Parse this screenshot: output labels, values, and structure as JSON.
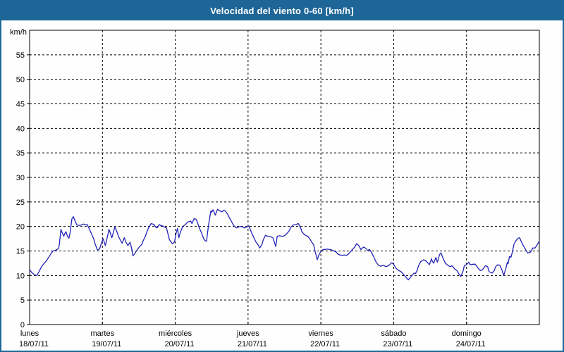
{
  "window": {
    "title": "Velocidad del viento 0-60 [km/h]"
  },
  "colors": {
    "titlebar_bg": "#1f6698",
    "titlebar_text": "#ffffff",
    "frame_border": "#1f6698",
    "plot_bg": "#fdfefd",
    "grid_color": "#000000",
    "line_color": "#2323b8"
  },
  "chart_data": {
    "type": "line",
    "title": "Velocidad del viento 0-60 [km/h]",
    "ylabel": "km/h",
    "xlabel": "",
    "ylim": [
      0,
      60
    ],
    "ytick_step": 5,
    "grid": "dashed",
    "legend": "none",
    "x_unit": "days",
    "x_labels": [
      {
        "day": "lunes",
        "date": "18/07/11"
      },
      {
        "day": "martes",
        "date": "19/07/11"
      },
      {
        "day": "miércoles",
        "date": "20/07/11"
      },
      {
        "day": "jueves",
        "date": "21/07/11"
      },
      {
        "day": "viernes",
        "date": "22/07/11"
      },
      {
        "day": "sábado",
        "date": "23/07/11"
      },
      {
        "day": "domingo",
        "date": "24/07/11"
      }
    ],
    "series": [
      {
        "name": "Velocidad del viento (km/h)",
        "color": "#2323b8",
        "points": [
          [
            0,
            11.2
          ],
          [
            0.03,
            10.6
          ],
          [
            0.07,
            10.1
          ],
          [
            0.1,
            10
          ],
          [
            0.13,
            10.8
          ],
          [
            0.16,
            11.7
          ],
          [
            0.19,
            12.3
          ],
          [
            0.23,
            13
          ],
          [
            0.27,
            13.9
          ],
          [
            0.3,
            14.6
          ],
          [
            0.32,
            15
          ],
          [
            0.35,
            15.1
          ],
          [
            0.38,
            15.3
          ],
          [
            0.4,
            15.6
          ],
          [
            0.41,
            16.5
          ],
          [
            0.43,
            19.4
          ],
          [
            0.45,
            18.6
          ],
          [
            0.47,
            18
          ],
          [
            0.48,
            18.5
          ],
          [
            0.5,
            18.9
          ],
          [
            0.52,
            18
          ],
          [
            0.54,
            17.6
          ],
          [
            0.56,
            19
          ],
          [
            0.58,
            21.5
          ],
          [
            0.6,
            22
          ],
          [
            0.62,
            21.3
          ],
          [
            0.64,
            20.6
          ],
          [
            0.65,
            20.3
          ],
          [
            0.68,
            20.2
          ],
          [
            0.71,
            20.3
          ],
          [
            0.74,
            20.5
          ],
          [
            0.77,
            20.3
          ],
          [
            0.79,
            20.4
          ],
          [
            0.82,
            19.5
          ],
          [
            0.85,
            18.5
          ],
          [
            0.88,
            17.5
          ],
          [
            0.9,
            16.4
          ],
          [
            0.93,
            15.2
          ],
          [
            0.96,
            15.4
          ],
          [
            0.99,
            16.8
          ],
          [
            1.01,
            17.5
          ],
          [
            1.04,
            16.1
          ],
          [
            1.07,
            18
          ],
          [
            1.09,
            19.4
          ],
          [
            1.11,
            18.6
          ],
          [
            1.13,
            17.7
          ],
          [
            1.15,
            18.8
          ],
          [
            1.17,
            19.9
          ],
          [
            1.2,
            18.9
          ],
          [
            1.22,
            18
          ],
          [
            1.25,
            17.1
          ],
          [
            1.27,
            16.6
          ],
          [
            1.3,
            17.7
          ],
          [
            1.32,
            16.9
          ],
          [
            1.35,
            16.1
          ],
          [
            1.38,
            16.8
          ],
          [
            1.4,
            15.6
          ],
          [
            1.42,
            14
          ],
          [
            1.45,
            14.6
          ],
          [
            1.48,
            15.3
          ],
          [
            1.51,
            15.9
          ],
          [
            1.54,
            16.3
          ],
          [
            1.56,
            17.1
          ],
          [
            1.59,
            18
          ],
          [
            1.61,
            18.9
          ],
          [
            1.64,
            19.9
          ],
          [
            1.67,
            20.6
          ],
          [
            1.69,
            20.5
          ],
          [
            1.71,
            20.4
          ],
          [
            1.73,
            19.9
          ],
          [
            1.75,
            19.7
          ],
          [
            1.78,
            20.4
          ],
          [
            1.8,
            20.2
          ],
          [
            1.83,
            20.1
          ],
          [
            1.85,
            19.9
          ],
          [
            1.88,
            19.7
          ],
          [
            1.9,
            18.5
          ],
          [
            1.92,
            17.3
          ],
          [
            1.94,
            16.9
          ],
          [
            1.96,
            16.5
          ],
          [
            1.99,
            16.8
          ],
          [
            2.01,
            18.5
          ],
          [
            2.03,
            19.6
          ],
          [
            2.05,
            17.7
          ],
          [
            2.07,
            18.8
          ],
          [
            2.1,
            19.9
          ],
          [
            2.12,
            20.2
          ],
          [
            2.14,
            20.4
          ],
          [
            2.17,
            20.9
          ],
          [
            2.19,
            21
          ],
          [
            2.21,
            21.1
          ],
          [
            2.23,
            20.6
          ],
          [
            2.26,
            21.6
          ],
          [
            2.29,
            21.4
          ],
          [
            2.31,
            20.6
          ],
          [
            2.33,
            19.7
          ],
          [
            2.36,
            18.7
          ],
          [
            2.39,
            17.5
          ],
          [
            2.41,
            17.1
          ],
          [
            2.43,
            17
          ],
          [
            2.45,
            19.5
          ],
          [
            2.47,
            21.5
          ],
          [
            2.49,
            23.2
          ],
          [
            2.5,
            22.9
          ],
          [
            2.52,
            23.4
          ],
          [
            2.55,
            22.3
          ],
          [
            2.58,
            23.5
          ],
          [
            2.61,
            23.2
          ],
          [
            2.64,
            23
          ],
          [
            2.67,
            23.3
          ],
          [
            2.69,
            23.1
          ],
          [
            2.72,
            22.5
          ],
          [
            2.75,
            21.6
          ],
          [
            2.77,
            21.1
          ],
          [
            2.79,
            20.5
          ],
          [
            2.81,
            20.1
          ],
          [
            2.84,
            19.7
          ],
          [
            2.87,
            19.9
          ],
          [
            2.9,
            20
          ],
          [
            2.93,
            19.9
          ],
          [
            2.95,
            19.7
          ],
          [
            2.98,
            19.9
          ],
          [
            3.01,
            20.1
          ],
          [
            3.05,
            18.7
          ],
          [
            3.08,
            17.7
          ],
          [
            3.11,
            16.8
          ],
          [
            3.14,
            16.2
          ],
          [
            3.16,
            15.6
          ],
          [
            3.19,
            16.3
          ],
          [
            3.21,
            17.3
          ],
          [
            3.24,
            18.2
          ],
          [
            3.27,
            18
          ],
          [
            3.31,
            17.9
          ],
          [
            3.34,
            17.7
          ],
          [
            3.36,
            16.9
          ],
          [
            3.38,
            15.9
          ],
          [
            3.4,
            18
          ],
          [
            3.43,
            18.1
          ],
          [
            3.47,
            18
          ],
          [
            3.5,
            18.1
          ],
          [
            3.53,
            18.5
          ],
          [
            3.56,
            19
          ],
          [
            3.59,
            19.9
          ],
          [
            3.62,
            20.3
          ],
          [
            3.66,
            20.4
          ],
          [
            3.69,
            20.6
          ],
          [
            3.72,
            19.8
          ],
          [
            3.74,
            18.9
          ],
          [
            3.77,
            18.4
          ],
          [
            3.8,
            18.1
          ],
          [
            3.82,
            18
          ],
          [
            3.85,
            17.4
          ],
          [
            3.88,
            16.7
          ],
          [
            3.9,
            16.3
          ],
          [
            3.92,
            15
          ],
          [
            3.95,
            13.2
          ],
          [
            3.97,
            14.1
          ],
          [
            4,
            14.9
          ],
          [
            4.03,
            15.3
          ],
          [
            4.06,
            15.3
          ],
          [
            4.09,
            15.4
          ],
          [
            4.12,
            15.3
          ],
          [
            4.15,
            15.2
          ],
          [
            4.18,
            15
          ],
          [
            4.21,
            14.8
          ],
          [
            4.23,
            14.4
          ],
          [
            4.26,
            14.2
          ],
          [
            4.29,
            14.1
          ],
          [
            4.32,
            14.2
          ],
          [
            4.35,
            14.1
          ],
          [
            4.38,
            14.4
          ],
          [
            4.41,
            14.9
          ],
          [
            4.44,
            15.4
          ],
          [
            4.47,
            15.9
          ],
          [
            4.49,
            16.5
          ],
          [
            4.52,
            16.1
          ],
          [
            4.55,
            15.3
          ],
          [
            4.57,
            15.6
          ],
          [
            4.59,
            15.8
          ],
          [
            4.62,
            15.5
          ],
          [
            4.64,
            15.1
          ],
          [
            4.67,
            15.3
          ],
          [
            4.7,
            14.6
          ],
          [
            4.73,
            13.7
          ],
          [
            4.76,
            12.7
          ],
          [
            4.79,
            12.1
          ],
          [
            4.82,
            11.9
          ],
          [
            4.86,
            12.1
          ],
          [
            4.89,
            11.8
          ],
          [
            4.93,
            12
          ],
          [
            4.97,
            12.6
          ],
          [
            5,
            12.3
          ],
          [
            5.03,
            11.5
          ],
          [
            5.07,
            11
          ],
          [
            5.1,
            10.8
          ],
          [
            5.13,
            10.3
          ],
          [
            5.17,
            9.6
          ],
          [
            5.2,
            9.1
          ],
          [
            5.23,
            9.6
          ],
          [
            5.26,
            10.2
          ],
          [
            5.28,
            10.5
          ],
          [
            5.3,
            10.4
          ],
          [
            5.32,
            11
          ],
          [
            5.34,
            11.9
          ],
          [
            5.37,
            12.8
          ],
          [
            5.41,
            13.2
          ],
          [
            5.44,
            13
          ],
          [
            5.46,
            12.7
          ],
          [
            5.49,
            12.2
          ],
          [
            5.52,
            13.4
          ],
          [
            5.53,
            12.9
          ],
          [
            5.55,
            12.5
          ],
          [
            5.58,
            13.7
          ],
          [
            5.6,
            12.7
          ],
          [
            5.63,
            14.3
          ],
          [
            5.65,
            14.6
          ],
          [
            5.68,
            13.4
          ],
          [
            5.71,
            12.5
          ],
          [
            5.75,
            12
          ],
          [
            5.78,
            11.8
          ],
          [
            5.8,
            12
          ],
          [
            5.84,
            11.3
          ],
          [
            5.87,
            11
          ],
          [
            5.9,
            10.2
          ],
          [
            5.92,
            9.8
          ],
          [
            5.95,
            10.8
          ],
          [
            5.97,
            12
          ],
          [
            6,
            12.2
          ],
          [
            6.03,
            12.7
          ],
          [
            6.05,
            12.2
          ],
          [
            6.09,
            12.3
          ],
          [
            6.12,
            12.3
          ],
          [
            6.16,
            11.5
          ],
          [
            6.19,
            11
          ],
          [
            6.22,
            11.2
          ],
          [
            6.26,
            12
          ],
          [
            6.29,
            11.8
          ],
          [
            6.31,
            10.8
          ],
          [
            6.35,
            10.5
          ],
          [
            6.38,
            11
          ],
          [
            6.4,
            11.8
          ],
          [
            6.43,
            12.2
          ],
          [
            6.46,
            12
          ],
          [
            6.49,
            11
          ],
          [
            6.51,
            10
          ],
          [
            6.54,
            11.4
          ],
          [
            6.56,
            12.7
          ],
          [
            6.57,
            12.4
          ],
          [
            6.59,
            13.9
          ],
          [
            6.61,
            13.7
          ],
          [
            6.63,
            14.8
          ],
          [
            6.65,
            16.3
          ],
          [
            6.67,
            16.9
          ],
          [
            6.69,
            17.3
          ],
          [
            6.71,
            17.6
          ],
          [
            6.73,
            17.7
          ],
          [
            6.75,
            17
          ],
          [
            6.78,
            16.1
          ],
          [
            6.8,
            15.6
          ],
          [
            6.82,
            15.1
          ],
          [
            6.84,
            14.6
          ],
          [
            6.87,
            14.7
          ],
          [
            6.89,
            15
          ],
          [
            6.91,
            15.6
          ],
          [
            6.94,
            15.6
          ],
          [
            6.96,
            16
          ],
          [
            6.98,
            16.5
          ],
          [
            7,
            17
          ]
        ]
      }
    ]
  }
}
